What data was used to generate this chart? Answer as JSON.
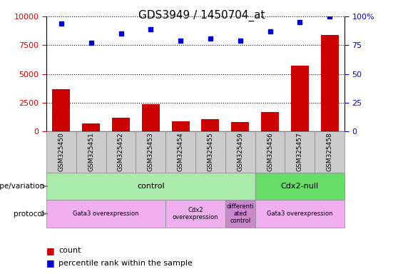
{
  "title": "GDS3949 / 1450704_at",
  "samples": [
    "GSM325450",
    "GSM325451",
    "GSM325452",
    "GSM325453",
    "GSM325454",
    "GSM325455",
    "GSM325459",
    "GSM325456",
    "GSM325457",
    "GSM325458"
  ],
  "counts": [
    3700,
    700,
    1200,
    2400,
    900,
    1100,
    800,
    1700,
    5700,
    8400
  ],
  "percentiles": [
    94,
    77,
    85,
    89,
    79,
    81,
    79,
    87,
    95,
    100
  ],
  "left_ylim": [
    0,
    10000
  ],
  "right_ylim": [
    0,
    100
  ],
  "left_yticks": [
    0,
    2500,
    5000,
    7500,
    10000
  ],
  "right_yticks": [
    0,
    25,
    50,
    75,
    100
  ],
  "bar_color": "#cc0000",
  "dot_color": "#0000cc",
  "genotype_groups": [
    {
      "label": "control",
      "start": 0,
      "end": 7,
      "color": "#aaeaaa"
    },
    {
      "label": "Cdx2-null",
      "start": 7,
      "end": 10,
      "color": "#66dd66"
    }
  ],
  "protocol_groups": [
    {
      "label": "Gata3 overexpression",
      "start": 0,
      "end": 4,
      "color": "#f0b0f0"
    },
    {
      "label": "Cdx2\noverexpression",
      "start": 4,
      "end": 6,
      "color": "#f0b0f0"
    },
    {
      "label": "differenti\nated\ncontrol",
      "start": 6,
      "end": 7,
      "color": "#cc88cc"
    },
    {
      "label": "Gata3 overexpression",
      "start": 7,
      "end": 10,
      "color": "#f0b0f0"
    }
  ],
  "genotype_label": "genotype/variation",
  "protocol_label": "protocol",
  "legend_count_label": "count",
  "legend_percentile_label": "percentile rank within the sample",
  "background_color": "#ffffff",
  "title_fontsize": 11,
  "tick_fontsize": 8,
  "annot_fontsize": 8,
  "sample_box_color": "#cccccc",
  "plot_bg_color": "#ffffff"
}
